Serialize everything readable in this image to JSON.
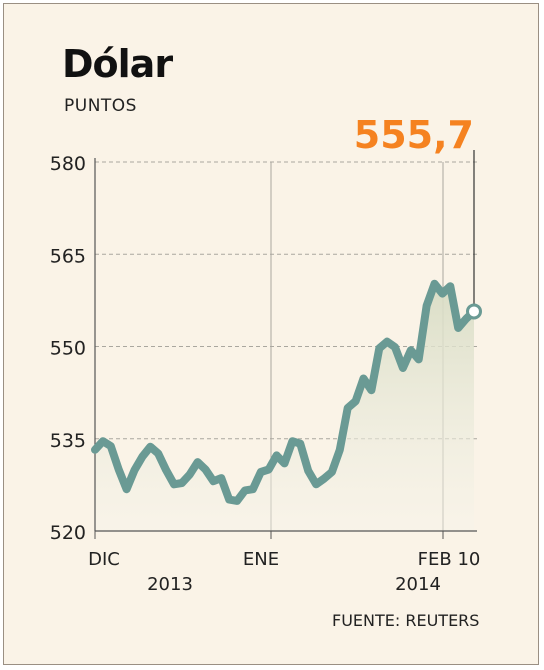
{
  "title": "Dólar",
  "subtitle": "PUNTOS",
  "source": "FUENTE: REUTERS",
  "colors": {
    "line": "#6a9a94",
    "highlight": "#f58220",
    "background": "#faf3e7"
  },
  "chart_data": {
    "type": "area",
    "ylim": [
      520,
      580
    ],
    "yticks": [
      "520",
      "535",
      "550",
      "565",
      "580"
    ],
    "x_labels": [
      {
        "text": "DIC",
        "year": "2013"
      },
      {
        "text": "ENE",
        "year": ""
      },
      {
        "text": "FEB 10",
        "year": "2014"
      }
    ],
    "series": [
      {
        "values": [
          533.2,
          534.6,
          533.8,
          530.0,
          526.8,
          529.9,
          532.1,
          533.7,
          532.6,
          529.9,
          527.6,
          527.8,
          529.2,
          531.2,
          530.0,
          528.1,
          528.6,
          525.1,
          524.9,
          526.6,
          526.8,
          529.6,
          530.0,
          532.3,
          531.0,
          534.6,
          534.2,
          529.8,
          527.6,
          528.5,
          529.6,
          533.2,
          540.0,
          541.1,
          544.8,
          542.9,
          549.7,
          550.8,
          549.9,
          546.5,
          549.4,
          547.9,
          556.6,
          560.2,
          558.6,
          559.8,
          553.0,
          554.5,
          555.7
        ]
      }
    ],
    "last_value_label": "555,7",
    "grid": true
  }
}
